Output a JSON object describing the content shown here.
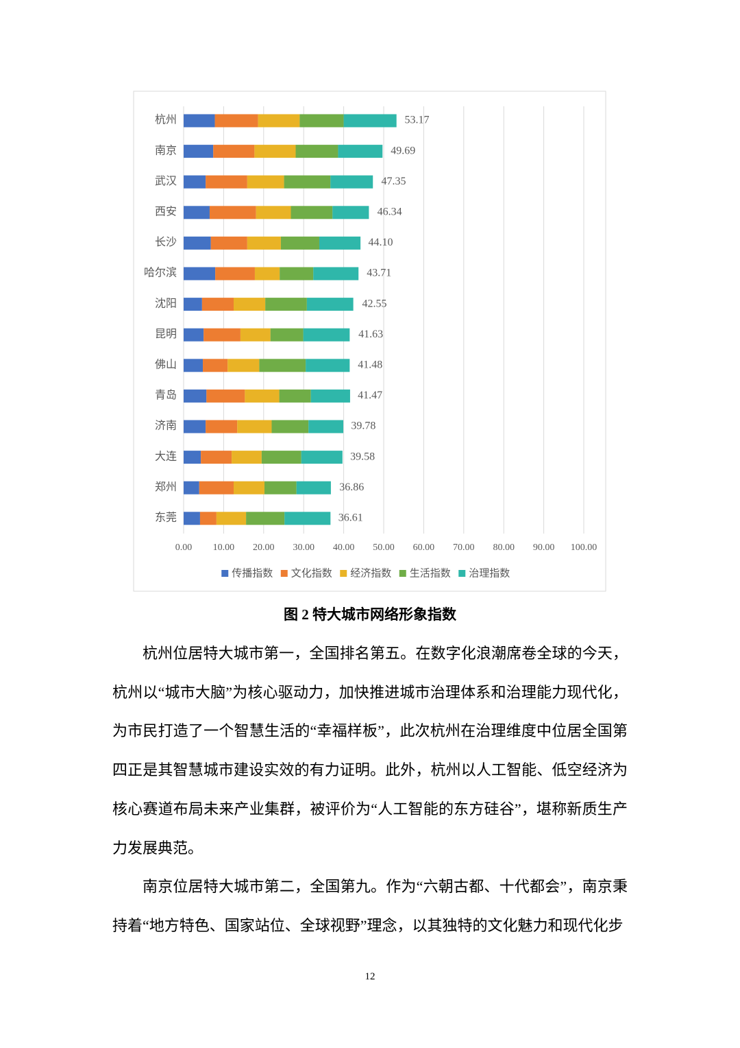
{
  "chart_data": {
    "type": "stacked-bar-horizontal",
    "categories": [
      "杭州",
      "南京",
      "武汉",
      "西安",
      "长沙",
      "哈尔滨",
      "沈阳",
      "昆明",
      "佛山",
      "青岛",
      "济南",
      "大连",
      "郑州",
      "东莞"
    ],
    "series": [
      {
        "name": "传播指数",
        "color": "#4472c4",
        "values": [
          7.8,
          7.4,
          5.5,
          6.5,
          6.8,
          7.9,
          4.6,
          5.0,
          4.8,
          5.7,
          5.5,
          4.3,
          3.9,
          4.1
        ]
      },
      {
        "name": "文化指数",
        "color": "#ed7d31",
        "values": [
          10.8,
          10.3,
          10.4,
          11.6,
          9.1,
          9.9,
          7.9,
          9.2,
          6.2,
          9.6,
          7.9,
          7.7,
          8.6,
          4.1
        ]
      },
      {
        "name": "经济指数",
        "color": "#e9b326",
        "values": [
          10.4,
          10.3,
          9.2,
          8.7,
          8.4,
          6.2,
          7.9,
          7.5,
          7.9,
          8.6,
          8.6,
          7.5,
          7.7,
          7.4
        ]
      },
      {
        "name": "生活指数",
        "color": "#70ad47",
        "values": [
          11.0,
          10.6,
          11.6,
          10.4,
          9.6,
          8.4,
          10.4,
          8.2,
          11.6,
          7.9,
          9.2,
          9.9,
          8.0,
          9.6
        ]
      },
      {
        "name": "治理指数",
        "color": "#2fb7aa",
        "values": [
          13.2,
          11.1,
          10.6,
          9.1,
          10.3,
          11.3,
          11.6,
          11.6,
          11.0,
          9.8,
          8.7,
          10.3,
          8.6,
          11.5
        ]
      }
    ],
    "totals": [
      53.17,
      49.69,
      47.35,
      46.34,
      44.1,
      43.71,
      42.55,
      41.63,
      41.48,
      41.47,
      39.78,
      39.58,
      36.86,
      36.61
    ],
    "total_labels": [
      "53.17",
      "49.69",
      "47.35",
      "46.34",
      "44.10",
      "43.71",
      "42.55",
      "41.63",
      "41.48",
      "41.47",
      "39.78",
      "39.58",
      "36.86",
      "36.61"
    ],
    "xlim": [
      0,
      100
    ],
    "xticks": [
      {
        "value": 0,
        "label": "0.00"
      },
      {
        "value": 10,
        "label": "10.00"
      },
      {
        "value": 20,
        "label": "20.00"
      },
      {
        "value": 30,
        "label": "30.00"
      },
      {
        "value": 40,
        "label": "40.00"
      },
      {
        "value": 50,
        "label": "50.00"
      },
      {
        "value": 60,
        "label": "60.00"
      },
      {
        "value": 70,
        "label": "70.00"
      },
      {
        "value": 80,
        "label": "80.00"
      },
      {
        "value": 90,
        "label": "90.00"
      },
      {
        "value": 100,
        "label": "100.00"
      }
    ],
    "grid": true,
    "legend": "bottom"
  },
  "caption": "图 2  特大城市网络形象指数",
  "paragraphs": [
    "杭州位居特大城市第一，全国排名第五。在数字化浪潮席卷全球的今天，杭州以“城市大脑”为核心驱动力，加快推进城市治理体系和治理能力现代化，为市民打造了一个智慧生活的“幸福样板”，此次杭州在治理维度中位居全国第四正是其智慧城市建设实效的有力证明。此外，杭州以人工智能、低空经济为核心赛道布局未来产业集群，被评价为“人工智能的东方硅谷”，堪称新质生产力发展典范。",
    "南京位居特大城市第二，全国第九。作为“六朝古都、十代都会”，南京秉持着“地方特色、国家站位、全球视野”理念，以其独特的文化魅力和现代化步"
  ],
  "page_number": "12"
}
